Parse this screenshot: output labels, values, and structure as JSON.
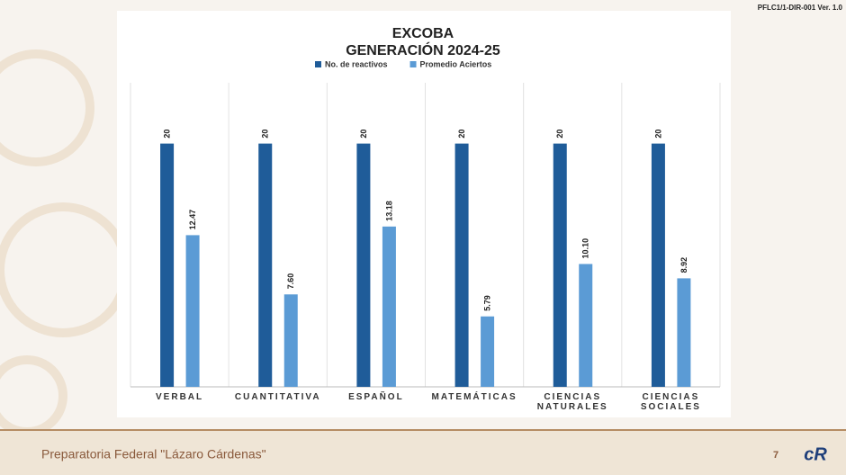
{
  "header": {
    "code": "PFLC1/1-DIR-001 Ver. 1.0"
  },
  "footer": {
    "school": "Preparatoria Federal \"Lázaro Cárdenas\"",
    "page": "7"
  },
  "chart_data": {
    "type": "bar",
    "title": "EXCOBA",
    "subtitle": "GENERACIÓN 2024-25",
    "categories": [
      "VERBAL",
      "CUANTITATIVA",
      "ESPAÑOL",
      "MATEMÁTICAS",
      "CIENCIAS NATURALES",
      "CIENCIAS SOCIALES"
    ],
    "series": [
      {
        "name": "No. de reactivos",
        "color": "#1f5c99",
        "values": [
          20,
          20,
          20,
          20,
          20,
          20
        ]
      },
      {
        "name": "Promedio Aciertos",
        "color": "#5b9bd5",
        "values": [
          12.47,
          7.6,
          13.18,
          5.79,
          10.1,
          8.92
        ],
        "value_labels": [
          "12.47",
          "7.60",
          "13.18",
          "5.79",
          "10.10",
          "8.92"
        ]
      }
    ],
    "ylim": [
      0,
      25
    ],
    "legend": "top"
  }
}
